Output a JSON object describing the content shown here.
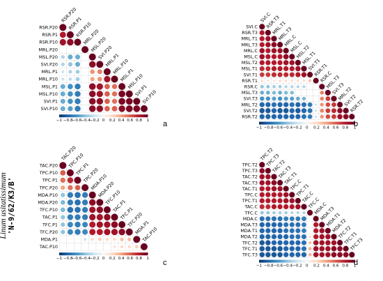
{
  "figure": {
    "species": "Linum usitatissimum",
    "cultivar": "'N-9/62/K3/B'",
    "colorbar_ticks": [
      "−1",
      "−0.8",
      "−0.6",
      "−0.4",
      "−0.2",
      "0",
      "0.2",
      "0.4",
      "0.6",
      "0.8",
      "1"
    ],
    "colors": {
      "negative": "#053061",
      "zero": "#f7f7f7",
      "positive": "#67001f"
    }
  },
  "chart_data": [
    {
      "type": "heatmap",
      "panel": "a",
      "variables": [
        "RSR.P20",
        "RSR.P1",
        "RSR.P10",
        "MRL.P20",
        "MSL.P20",
        "SVI.P20",
        "MRL.P1",
        "MRL.P10",
        "MSL.P1",
        "MSL.P10",
        "SVI.P1",
        "SVI.P10"
      ],
      "values": [
        [
          1.0,
          0.8,
          0.85,
          0.0,
          -0.3,
          -0.3,
          -0.2,
          -0.2,
          -0.5,
          -0.5,
          -0.5,
          -0.5
        ],
        [
          0.8,
          1.0,
          0.9,
          0.0,
          -0.5,
          -0.4,
          -0.3,
          -0.25,
          -0.6,
          -0.6,
          -0.6,
          -0.55
        ],
        [
          0.85,
          0.9,
          1.0,
          0.0,
          -0.5,
          -0.5,
          -0.35,
          -0.35,
          -0.7,
          -0.7,
          -0.7,
          -0.7
        ],
        [
          0.0,
          0.0,
          0.0,
          1.0,
          0.0,
          0.0,
          0.0,
          0.0,
          0.0,
          0.0,
          0.0,
          0.0
        ],
        [
          -0.3,
          -0.5,
          -0.5,
          0.0,
          1.0,
          0.9,
          0.45,
          0.4,
          0.9,
          0.9,
          0.9,
          0.9
        ],
        [
          -0.3,
          -0.4,
          -0.5,
          0.0,
          0.9,
          1.0,
          0.5,
          0.45,
          0.85,
          0.85,
          0.9,
          0.9
        ],
        [
          -0.2,
          -0.3,
          -0.35,
          0.0,
          0.45,
          0.5,
          1.0,
          0.85,
          0.6,
          0.6,
          0.6,
          0.6
        ],
        [
          -0.2,
          -0.25,
          -0.35,
          0.0,
          0.4,
          0.45,
          0.85,
          1.0,
          0.55,
          0.55,
          0.55,
          0.6
        ],
        [
          -0.5,
          -0.6,
          -0.7,
          0.0,
          0.9,
          0.85,
          0.6,
          0.55,
          1.0,
          0.95,
          0.95,
          0.9
        ],
        [
          -0.5,
          -0.6,
          -0.7,
          0.0,
          0.9,
          0.85,
          0.6,
          0.55,
          0.95,
          1.0,
          0.95,
          0.95
        ],
        [
          -0.5,
          -0.6,
          -0.7,
          0.0,
          0.9,
          0.9,
          0.6,
          0.55,
          0.95,
          0.95,
          1.0,
          0.95
        ],
        [
          -0.5,
          -0.55,
          -0.7,
          0.0,
          0.9,
          0.9,
          0.6,
          0.6,
          0.9,
          0.95,
          0.95,
          1.0
        ]
      ],
      "colorbar_range": [
        -1,
        1
      ]
    },
    {
      "type": "heatmap",
      "panel": "b",
      "variables": [
        "SVI.C",
        "RSR.T3",
        "MRL.T1",
        "MRL.T3",
        "MRL.C",
        "MSL.C",
        "MSL.T2",
        "MSL.T1",
        "SVI.T1",
        "RSR.T1",
        "RSR.C",
        "MSL.T3",
        "SVI.T3",
        "MRL.T2",
        "SVI.T2",
        "RSR.T2"
      ],
      "values": [
        [
          1.0,
          0.8,
          0.8,
          0.8,
          0.85,
          0.85,
          0.8,
          0.75,
          0.7,
          0.2,
          -0.4,
          -0.5,
          -0.6,
          -0.8,
          -0.85,
          -0.8
        ],
        [
          0.8,
          1.0,
          0.85,
          0.85,
          0.8,
          0.8,
          0.8,
          0.75,
          0.7,
          0.15,
          -0.4,
          -0.5,
          -0.6,
          -0.8,
          -0.85,
          -0.8
        ],
        [
          0.8,
          0.85,
          1.0,
          0.9,
          0.85,
          0.8,
          0.8,
          0.8,
          0.75,
          0.15,
          -0.35,
          -0.45,
          -0.55,
          -0.75,
          -0.8,
          -0.8
        ],
        [
          0.8,
          0.85,
          0.9,
          1.0,
          0.85,
          0.8,
          0.8,
          0.8,
          0.75,
          0.2,
          -0.35,
          -0.5,
          -0.6,
          -0.8,
          -0.85,
          -0.8
        ],
        [
          0.85,
          0.8,
          0.85,
          0.85,
          1.0,
          0.9,
          0.85,
          0.8,
          0.75,
          0.2,
          -0.3,
          -0.45,
          -0.55,
          -0.8,
          -0.85,
          -0.8
        ],
        [
          0.85,
          0.8,
          0.8,
          0.8,
          0.9,
          1.0,
          0.85,
          0.8,
          0.75,
          0.2,
          -0.3,
          -0.45,
          -0.55,
          -0.75,
          -0.8,
          -0.8
        ],
        [
          0.8,
          0.8,
          0.8,
          0.8,
          0.85,
          0.85,
          1.0,
          0.85,
          0.8,
          0.2,
          -0.3,
          0.0,
          -0.5,
          -0.8,
          -0.85,
          -0.8
        ],
        [
          0.75,
          0.75,
          0.8,
          0.8,
          0.8,
          0.8,
          0.85,
          1.0,
          0.85,
          0.2,
          -0.3,
          0.0,
          -0.45,
          -0.75,
          -0.8,
          -0.75
        ],
        [
          0.7,
          0.7,
          0.75,
          0.75,
          0.75,
          0.75,
          0.8,
          0.85,
          1.0,
          0.3,
          0.0,
          0.0,
          0.0,
          -0.7,
          -0.75,
          -0.7
        ],
        [
          0.2,
          0.15,
          0.15,
          0.2,
          0.2,
          0.2,
          0.2,
          0.2,
          0.3,
          1.0,
          0.0,
          0.0,
          0.0,
          -0.2,
          -0.2,
          -0.2
        ],
        [
          -0.4,
          -0.4,
          -0.35,
          -0.35,
          -0.3,
          -0.3,
          -0.3,
          -0.3,
          0.0,
          0.0,
          1.0,
          0.5,
          0.5,
          0.45,
          0.5,
          0.45
        ],
        [
          -0.5,
          -0.5,
          -0.45,
          -0.5,
          -0.45,
          -0.45,
          0.0,
          0.0,
          0.0,
          0.0,
          0.5,
          1.0,
          0.7,
          0.65,
          0.7,
          0.65
        ],
        [
          -0.6,
          -0.6,
          -0.55,
          -0.6,
          -0.55,
          -0.55,
          -0.5,
          -0.45,
          0.0,
          0.0,
          0.5,
          0.7,
          1.0,
          0.7,
          0.75,
          0.7
        ],
        [
          -0.8,
          -0.8,
          -0.75,
          -0.8,
          -0.8,
          -0.75,
          -0.8,
          -0.75,
          -0.7,
          -0.2,
          0.45,
          0.65,
          0.7,
          1.0,
          0.9,
          0.85
        ],
        [
          -0.85,
          -0.85,
          -0.8,
          -0.85,
          -0.85,
          -0.8,
          -0.85,
          -0.8,
          -0.75,
          -0.2,
          0.5,
          0.7,
          0.75,
          0.9,
          1.0,
          0.9
        ],
        [
          -0.8,
          -0.8,
          -0.8,
          -0.8,
          -0.8,
          -0.8,
          -0.8,
          -0.75,
          -0.7,
          -0.2,
          0.45,
          0.65,
          0.7,
          0.85,
          0.9,
          1.0
        ]
      ],
      "colorbar_range": [
        -1,
        1
      ]
    },
    {
      "type": "heatmap",
      "panel": "c",
      "variables": [
        "TAC.P20",
        "TPC.P10",
        "TPC.P1",
        "TPC.P20",
        "MDA.P10",
        "MDA.P20",
        "TFC.P10",
        "TAC.P1",
        "TFC.P1",
        "TFC.P20",
        "MDA.P1",
        "TAC.P10"
      ],
      "values": [
        [
          1.0,
          0.6,
          0.55,
          0.4,
          -0.4,
          -0.45,
          -0.45,
          -0.4,
          -0.4,
          -0.4,
          0.0,
          0.0
        ],
        [
          0.6,
          1.0,
          0.75,
          0.55,
          -0.7,
          -0.7,
          -0.75,
          -0.7,
          -0.65,
          -0.65,
          0.0,
          0.0
        ],
        [
          0.55,
          0.75,
          1.0,
          0.6,
          -0.75,
          -0.75,
          -0.75,
          -0.7,
          -0.7,
          -0.7,
          0.0,
          0.0
        ],
        [
          0.4,
          0.55,
          0.6,
          1.0,
          -0.7,
          -0.7,
          -0.7,
          -0.7,
          -0.65,
          -0.65,
          -0.2,
          0.0
        ],
        [
          -0.4,
          -0.7,
          -0.75,
          -0.7,
          1.0,
          0.9,
          0.85,
          0.85,
          0.8,
          0.8,
          0.2,
          0.0
        ],
        [
          -0.45,
          -0.7,
          -0.75,
          -0.7,
          0.9,
          1.0,
          0.9,
          0.85,
          0.85,
          0.8,
          0.25,
          0.0
        ],
        [
          -0.45,
          -0.75,
          -0.75,
          -0.7,
          0.85,
          0.9,
          1.0,
          0.9,
          0.85,
          0.85,
          0.2,
          0.0
        ],
        [
          -0.4,
          -0.7,
          -0.7,
          -0.7,
          0.85,
          0.85,
          0.9,
          1.0,
          0.9,
          0.85,
          0.2,
          0.15
        ],
        [
          -0.4,
          -0.65,
          -0.7,
          -0.65,
          0.8,
          0.85,
          0.85,
          0.9,
          1.0,
          0.9,
          0.3,
          0.2
        ],
        [
          -0.4,
          -0.65,
          -0.7,
          -0.65,
          0.8,
          0.8,
          0.85,
          0.85,
          0.9,
          1.0,
          0.3,
          0.2
        ],
        [
          0.0,
          0.0,
          0.0,
          -0.2,
          0.2,
          0.25,
          0.2,
          0.2,
          0.3,
          0.3,
          1.0,
          0.25
        ],
        [
          0.0,
          0.0,
          0.0,
          0.0,
          0.0,
          0.0,
          0.0,
          0.15,
          0.2,
          0.2,
          0.25,
          1.0
        ]
      ],
      "colorbar_range": [
        -1,
        1
      ]
    },
    {
      "type": "heatmap",
      "panel": "d",
      "variables": [
        "TPC.T2",
        "TPC.T3",
        "TAC.T2",
        "TAC.T3",
        "TAC.T1",
        "TPC.C",
        "TPC.T1",
        "TAC.C",
        "TFC.C",
        "MDA.C",
        "MDA.T3",
        "MDA.T1",
        "MDA.T2",
        "TFC.T2",
        "TFC.T1",
        "TFC.T3"
      ],
      "values": [
        [
          1.0,
          0.9,
          0.85,
          0.85,
          0.8,
          0.8,
          0.8,
          0.75,
          -0.4,
          -0.75,
          -0.8,
          -0.8,
          -0.8,
          -0.85,
          -0.85,
          -0.85
        ],
        [
          0.9,
          1.0,
          0.85,
          0.85,
          0.8,
          0.8,
          0.8,
          0.75,
          -0.4,
          -0.75,
          -0.8,
          -0.8,
          -0.8,
          -0.85,
          -0.85,
          -0.85
        ],
        [
          0.85,
          0.85,
          1.0,
          0.9,
          0.85,
          0.8,
          0.8,
          0.8,
          -0.35,
          -0.75,
          -0.8,
          -0.8,
          -0.8,
          -0.8,
          -0.85,
          -0.85
        ],
        [
          0.85,
          0.85,
          0.9,
          1.0,
          0.85,
          0.8,
          0.8,
          0.8,
          -0.35,
          -0.75,
          -0.8,
          -0.8,
          -0.8,
          -0.8,
          -0.85,
          -0.85
        ],
        [
          0.8,
          0.8,
          0.85,
          0.85,
          1.0,
          0.85,
          0.85,
          0.8,
          -0.35,
          -0.7,
          -0.75,
          -0.75,
          -0.8,
          -0.8,
          -0.8,
          -0.8
        ],
        [
          0.8,
          0.8,
          0.8,
          0.8,
          0.85,
          1.0,
          0.85,
          0.8,
          -0.3,
          -0.7,
          -0.75,
          -0.75,
          -0.75,
          -0.8,
          -0.8,
          -0.8
        ],
        [
          0.8,
          0.8,
          0.8,
          0.8,
          0.85,
          0.85,
          1.0,
          0.85,
          -0.3,
          -0.7,
          -0.75,
          -0.75,
          -0.75,
          -0.8,
          -0.8,
          -0.8
        ],
        [
          0.75,
          0.75,
          0.8,
          0.8,
          0.8,
          0.8,
          0.85,
          1.0,
          -0.3,
          -0.7,
          -0.7,
          -0.7,
          -0.75,
          -0.75,
          -0.75,
          -0.8
        ],
        [
          -0.4,
          -0.4,
          -0.35,
          -0.35,
          -0.35,
          -0.3,
          -0.3,
          -0.3,
          1.0,
          0.0,
          0.0,
          0.0,
          0.2,
          0.3,
          0.35,
          0.35
        ],
        [
          -0.75,
          -0.75,
          -0.75,
          -0.75,
          -0.7,
          -0.7,
          -0.7,
          -0.7,
          0.0,
          1.0,
          0.8,
          0.8,
          0.8,
          0.85,
          0.85,
          0.85
        ],
        [
          -0.8,
          -0.8,
          -0.8,
          -0.8,
          -0.75,
          -0.75,
          -0.75,
          -0.7,
          0.0,
          0.8,
          1.0,
          0.85,
          0.85,
          0.85,
          0.85,
          0.85
        ],
        [
          -0.8,
          -0.8,
          -0.8,
          -0.8,
          -0.75,
          -0.75,
          -0.75,
          -0.7,
          0.0,
          0.8,
          0.85,
          1.0,
          0.85,
          0.85,
          0.85,
          0.85
        ],
        [
          -0.8,
          -0.8,
          -0.8,
          -0.8,
          -0.8,
          -0.75,
          -0.75,
          -0.75,
          0.2,
          0.8,
          0.85,
          0.85,
          1.0,
          0.85,
          0.9,
          0.9
        ],
        [
          -0.85,
          -0.85,
          -0.8,
          -0.8,
          -0.8,
          -0.8,
          -0.8,
          -0.75,
          0.3,
          0.85,
          0.85,
          0.85,
          0.85,
          1.0,
          0.9,
          0.9
        ],
        [
          -0.85,
          -0.85,
          -0.85,
          -0.85,
          -0.8,
          -0.8,
          -0.8,
          -0.75,
          0.35,
          0.85,
          0.85,
          0.85,
          0.9,
          0.9,
          1.0,
          0.9
        ],
        [
          -0.85,
          -0.85,
          -0.85,
          -0.85,
          -0.8,
          -0.8,
          -0.8,
          -0.8,
          0.35,
          0.85,
          0.85,
          0.85,
          0.9,
          0.9,
          0.9,
          1.0
        ]
      ],
      "colorbar_range": [
        -1,
        1
      ]
    }
  ]
}
